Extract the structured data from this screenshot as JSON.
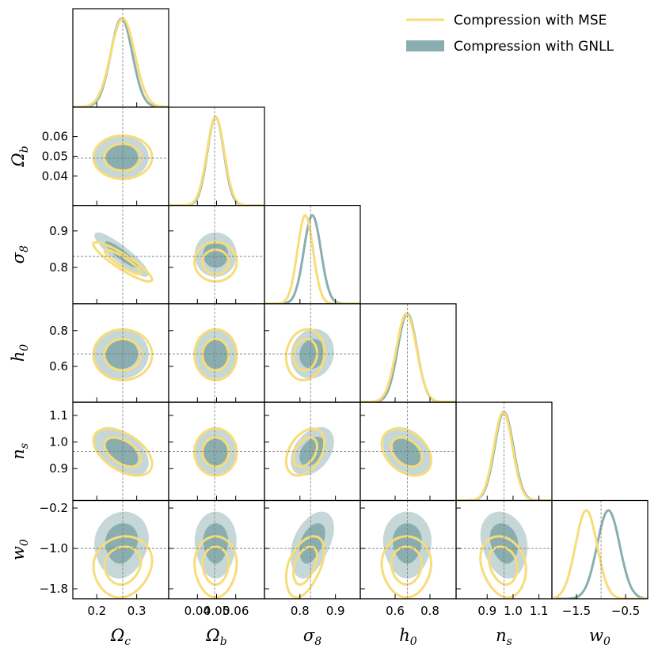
{
  "chart_data": {
    "type": "corner",
    "colors": {
      "mse": "#f7dc78",
      "gnll": "#8aaeb0",
      "gnll_outer": "#c6d7d8",
      "frame": "#000000",
      "truth": "#777777"
    },
    "legend": [
      {
        "series": "mse",
        "label": "Compression with MSE",
        "style": "line"
      },
      {
        "series": "gnll",
        "label": "Compression with GNLL",
        "style": "patch"
      }
    ],
    "params": [
      {
        "sym": "Ω",
        "sub": "c",
        "truth": 0.265,
        "range": [
          0.14,
          0.38
        ],
        "ticks": [
          {
            "v": 0.2,
            "t": "0.2"
          },
          {
            "v": 0.3,
            "t": "0.3"
          }
        ]
      },
      {
        "sym": "Ω",
        "sub": "b",
        "truth": 0.049,
        "range": [
          0.025,
          0.075
        ],
        "ticks": [
          {
            "v": 0.04,
            "t": "0.04"
          },
          {
            "v": 0.05,
            "t": "0.05"
          },
          {
            "v": 0.06,
            "t": "0.06"
          }
        ]
      },
      {
        "sym": "σ",
        "sub": "8",
        "truth": 0.83,
        "range": [
          0.7,
          0.97
        ],
        "ticks": [
          {
            "v": 0.8,
            "t": "0.8"
          },
          {
            "v": 0.9,
            "t": "0.9"
          }
        ]
      },
      {
        "sym": "h",
        "sub": "0",
        "truth": 0.67,
        "range": [
          0.4,
          0.95
        ],
        "ticks": [
          {
            "v": 0.6,
            "t": "0.6"
          },
          {
            "v": 0.8,
            "t": "0.8"
          }
        ]
      },
      {
        "sym": "n",
        "sub": "s",
        "truth": 0.965,
        "range": [
          0.78,
          1.15
        ],
        "ticks": [
          {
            "v": 0.9,
            "t": "0.9"
          },
          {
            "v": 1.0,
            "t": "1.0"
          },
          {
            "v": 1.1,
            "t": "1.1"
          }
        ]
      },
      {
        "sym": "w",
        "sub": "0",
        "truth": -1.0,
        "range": [
          -2.0,
          -0.05
        ],
        "ticks": [
          {
            "v": -1.8,
            "t": "−1.8"
          },
          {
            "v": -1.0,
            "t": "−1.0"
          },
          {
            "v": -0.2,
            "t": "−0.2"
          }
        ]
      }
    ],
    "w0_diag_ticks": [
      {
        "v": -1.5,
        "t": "−1.5"
      },
      {
        "v": -0.5,
        "t": "−0.5"
      }
    ],
    "marginals": {
      "mse": {
        "mean": [
          0.265,
          0.0495,
          0.815,
          0.665,
          0.962,
          -1.3
        ],
        "sd": [
          0.03,
          0.0045,
          0.022,
          0.058,
          0.036,
          0.22
        ]
      },
      "gnll": {
        "mean": [
          0.262,
          0.0495,
          0.835,
          0.67,
          0.965,
          -0.85
        ],
        "sd": [
          0.027,
          0.0043,
          0.024,
          0.055,
          0.036,
          0.23
        ]
      }
    },
    "correlations": {
      "0-2": -0.9,
      "0-4": -0.5,
      "2-4": 0.4,
      "3-4": -0.35,
      "2-3": 0.1,
      "0-5": 0.1,
      "2-5": 0.45,
      "4-5": -0.2
    }
  }
}
